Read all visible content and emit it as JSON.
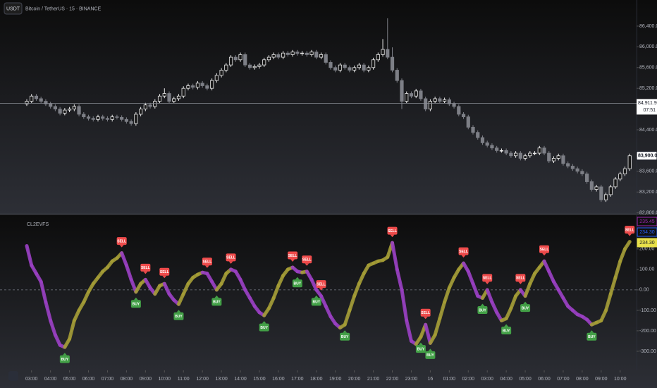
{
  "chart_data": [
    {
      "type": "candlestick",
      "title": "Bitcoin / TetherUS · 15 · BINANCE",
      "currency": "USDT",
      "up_color": "#e8e8e8",
      "down_color": "#7d7f86",
      "ylim": [
        82795,
        86903
      ],
      "yticks": [
        {
          "value": 86400,
          "label": "86,400.00"
        },
        {
          "value": 86000,
          "label": "86,000.00"
        },
        {
          "value": 85600,
          "label": "85,600.00"
        },
        {
          "value": 85200,
          "label": "85,200.00"
        },
        {
          "value": 84400,
          "label": "84,400.00"
        },
        {
          "value": 83600,
          "label": "83,600.00"
        },
        {
          "value": 83200,
          "label": "83,200.00"
        },
        {
          "value": 82800,
          "label": "82,800.00"
        }
      ],
      "price_lines": [
        {
          "value": 84911.9,
          "label": "84,911.90",
          "countdown": "07:51"
        },
        {
          "value": 83900,
          "label": "83,900.00"
        }
      ],
      "ohlc": [
        [
          84900,
          84990,
          84860,
          84950
        ],
        [
          84950,
          85090,
          84910,
          85050
        ],
        [
          85050,
          85090,
          84960,
          85000
        ],
        [
          85000,
          85040,
          84910,
          84950
        ],
        [
          84950,
          84990,
          84860,
          84900
        ],
        [
          84900,
          84940,
          84810,
          84850
        ],
        [
          84850,
          84890,
          84760,
          84800
        ],
        [
          84800,
          84840,
          84680,
          84720
        ],
        [
          84720,
          84820,
          84680,
          84780
        ],
        [
          84780,
          84840,
          84740,
          84800
        ],
        [
          84800,
          84890,
          84760,
          84850
        ],
        [
          84850,
          84890,
          84660,
          84700
        ],
        [
          84700,
          84740,
          84610,
          84650
        ],
        [
          84650,
          84690,
          84580,
          84620
        ],
        [
          84620,
          84660,
          84560,
          84600
        ],
        [
          84600,
          84690,
          84560,
          84650
        ],
        [
          84650,
          84690,
          84580,
          84620
        ],
        [
          84620,
          84660,
          84560,
          84600
        ],
        [
          84600,
          84690,
          84560,
          84650
        ],
        [
          84650,
          84690,
          84600,
          84640
        ],
        [
          84640,
          84680,
          84560,
          84600
        ],
        [
          84600,
          84640,
          84520,
          84560
        ],
        [
          84560,
          84600,
          84480,
          84520
        ],
        [
          84520,
          84740,
          84480,
          84700
        ],
        [
          84700,
          84840,
          84660,
          84800
        ],
        [
          84800,
          84920,
          84760,
          84880
        ],
        [
          84880,
          84920,
          84810,
          84850
        ],
        [
          84850,
          84990,
          84810,
          84950
        ],
        [
          84950,
          85090,
          84910,
          85050
        ],
        [
          85050,
          85200,
          85010,
          85100
        ],
        [
          85100,
          85140,
          84910,
          84950
        ],
        [
          84950,
          85040,
          84910,
          85000
        ],
        [
          85000,
          85090,
          84960,
          85050
        ],
        [
          85050,
          85240,
          85010,
          85200
        ],
        [
          85200,
          85290,
          85160,
          85250
        ],
        [
          85250,
          85290,
          85180,
          85220
        ],
        [
          85220,
          85340,
          85180,
          85300
        ],
        [
          85300,
          85340,
          85210,
          85250
        ],
        [
          85250,
          85290,
          85160,
          85200
        ],
        [
          85200,
          85390,
          85160,
          85350
        ],
        [
          85350,
          85490,
          85310,
          85450
        ],
        [
          85450,
          85590,
          85410,
          85550
        ],
        [
          85550,
          85690,
          85510,
          85650
        ],
        [
          85650,
          85840,
          85610,
          85800
        ],
        [
          85800,
          85840,
          85710,
          85750
        ],
        [
          85750,
          85890,
          85710,
          85850
        ],
        [
          85850,
          85890,
          85610,
          85650
        ],
        [
          85650,
          85690,
          85560,
          85600
        ],
        [
          85600,
          85660,
          85560,
          85620
        ],
        [
          85620,
          85690,
          85580,
          85650
        ],
        [
          85650,
          85790,
          85610,
          85750
        ],
        [
          85750,
          85840,
          85710,
          85800
        ],
        [
          85800,
          85890,
          85760,
          85850
        ],
        [
          85850,
          85890,
          85760,
          85800
        ],
        [
          85800,
          85920,
          85760,
          85880
        ],
        [
          85880,
          85920,
          85810,
          85850
        ],
        [
          85850,
          85940,
          85810,
          85900
        ],
        [
          85900,
          85940,
          85830,
          85870
        ],
        [
          85870,
          85920,
          85830,
          85880
        ],
        [
          85880,
          85920,
          85810,
          85850
        ],
        [
          85850,
          85940,
          85810,
          85900
        ],
        [
          85900,
          85940,
          85760,
          85800
        ],
        [
          85800,
          85890,
          85760,
          85850
        ],
        [
          85850,
          85890,
          85660,
          85700
        ],
        [
          85700,
          85740,
          85560,
          85600
        ],
        [
          85600,
          85640,
          85510,
          85550
        ],
        [
          85550,
          85690,
          85510,
          85650
        ],
        [
          85650,
          85690,
          85560,
          85600
        ],
        [
          85600,
          85640,
          85510,
          85550
        ],
        [
          85550,
          85640,
          85510,
          85600
        ],
        [
          85600,
          85690,
          85560,
          85650
        ],
        [
          85650,
          85690,
          85510,
          85550
        ],
        [
          85550,
          85640,
          85510,
          85600
        ],
        [
          85600,
          85790,
          85560,
          85750
        ],
        [
          85750,
          85890,
          85710,
          85850
        ],
        [
          85850,
          86150,
          85810,
          85950
        ],
        [
          85950,
          86550,
          85760,
          85800
        ],
        [
          85800,
          85990,
          85510,
          85550
        ],
        [
          85550,
          85590,
          85310,
          85350
        ],
        [
          85350,
          85390,
          84800,
          84950
        ],
        [
          84950,
          85140,
          84910,
          85100
        ],
        [
          85100,
          85140,
          85010,
          85050
        ],
        [
          85050,
          85190,
          85010,
          85150
        ],
        [
          85150,
          85190,
          84960,
          85000
        ],
        [
          85000,
          85040,
          84760,
          84800
        ],
        [
          84800,
          84990,
          84760,
          84950
        ],
        [
          84950,
          85040,
          84910,
          85000
        ],
        [
          85000,
          85040,
          84910,
          84950
        ],
        [
          84950,
          85020,
          84910,
          84980
        ],
        [
          84980,
          85020,
          84860,
          84900
        ],
        [
          84900,
          84940,
          84810,
          84850
        ],
        [
          84850,
          84890,
          84660,
          84700
        ],
        [
          84700,
          84740,
          84610,
          84650
        ],
        [
          84650,
          84690,
          84410,
          84450
        ],
        [
          84450,
          84490,
          84310,
          84350
        ],
        [
          84350,
          84390,
          84210,
          84250
        ],
        [
          84250,
          84290,
          84110,
          84150
        ],
        [
          84150,
          84190,
          84060,
          84100
        ],
        [
          84100,
          84140,
          84010,
          84050
        ],
        [
          84050,
          84090,
          83960,
          84000
        ],
        [
          84000,
          84040,
          83960,
          84000
        ],
        [
          84000,
          84040,
          83910,
          83950
        ],
        [
          83950,
          83990,
          83860,
          83900
        ],
        [
          83900,
          83990,
          83860,
          83950
        ],
        [
          83950,
          83990,
          83810,
          83850
        ],
        [
          83850,
          83940,
          83810,
          83900
        ],
        [
          83900,
          83990,
          83860,
          83950
        ],
        [
          83950,
          83990,
          83910,
          83950
        ],
        [
          83950,
          84090,
          83910,
          84050
        ],
        [
          84050,
          84090,
          83910,
          83950
        ],
        [
          83950,
          83990,
          83760,
          83800
        ],
        [
          83800,
          83890,
          83760,
          83850
        ],
        [
          83850,
          83940,
          83810,
          83900
        ],
        [
          83900,
          83940,
          83710,
          83750
        ],
        [
          83750,
          83790,
          83660,
          83700
        ],
        [
          83700,
          83740,
          83610,
          83650
        ],
        [
          83650,
          83690,
          83560,
          83600
        ],
        [
          83600,
          83640,
          83510,
          83550
        ],
        [
          83550,
          83590,
          83360,
          83400
        ],
        [
          83400,
          83440,
          83210,
          83250
        ],
        [
          83250,
          83340,
          83210,
          83300
        ],
        [
          83300,
          83340,
          83010,
          83050
        ],
        [
          83050,
          83190,
          83010,
          83150
        ],
        [
          83150,
          83340,
          83110,
          83300
        ],
        [
          83300,
          83490,
          83260,
          83450
        ],
        [
          83450,
          83590,
          83410,
          83550
        ],
        [
          83550,
          83690,
          83510,
          83650
        ],
        [
          83650,
          83940,
          83610,
          83900
        ]
      ]
    },
    {
      "type": "line",
      "title": "CL2EVFS",
      "up_color": "#a59d35",
      "down_color": "#9a3fc2",
      "zero_line": true,
      "xlim": [
        -5.64,
        128.45
      ],
      "xticks": [
        {
          "value": 1,
          "label": "03:00"
        },
        {
          "value": 5,
          "label": "04:00"
        },
        {
          "value": 9,
          "label": "05:00"
        },
        {
          "value": 13,
          "label": "06:00"
        },
        {
          "value": 17,
          "label": "07:00"
        },
        {
          "value": 21,
          "label": "08:00"
        },
        {
          "value": 25,
          "label": "09:00"
        },
        {
          "value": 29,
          "label": "10:00"
        },
        {
          "value": 33,
          "label": "11:00"
        },
        {
          "value": 37,
          "label": "12:00"
        },
        {
          "value": 41,
          "label": "13:00"
        },
        {
          "value": 45,
          "label": "14:00"
        },
        {
          "value": 49,
          "label": "15:00"
        },
        {
          "value": 53,
          "label": "16:00"
        },
        {
          "value": 57,
          "label": "17:00"
        },
        {
          "value": 61,
          "label": "18:00"
        },
        {
          "value": 65,
          "label": "19:00"
        },
        {
          "value": 69,
          "label": "20:00"
        },
        {
          "value": 73,
          "label": "21:00"
        },
        {
          "value": 77,
          "label": "22:00"
        },
        {
          "value": 81,
          "label": "23:00"
        },
        {
          "value": 85,
          "label": "16"
        },
        {
          "value": 89,
          "label": "01:00"
        },
        {
          "value": 93,
          "label": "02:00"
        },
        {
          "value": 97,
          "label": "03:00"
        },
        {
          "value": 101,
          "label": "04:00"
        },
        {
          "value": 105,
          "label": "05:00"
        },
        {
          "value": 109,
          "label": "06:00"
        },
        {
          "value": 113,
          "label": "07:00"
        },
        {
          "value": 117,
          "label": "08:00"
        },
        {
          "value": 121,
          "label": "09:00"
        },
        {
          "value": 125,
          "label": "10:00"
        }
      ],
      "ylim": [
        -376,
        365
      ],
      "yticks": [
        {
          "value": 200,
          "label": "200.00"
        },
        {
          "value": 100,
          "label": "100.00"
        },
        {
          "value": 0,
          "label": "0.00"
        },
        {
          "value": -100,
          "label": "-100.00"
        },
        {
          "value": -200,
          "label": "-200.00"
        },
        {
          "value": -300,
          "label": "-300.00"
        }
      ],
      "values": [
        215,
        120,
        80,
        40,
        -60,
        -150,
        -220,
        -270,
        -280,
        -240,
        -150,
        -100,
        -60,
        -10,
        30,
        60,
        90,
        110,
        140,
        155,
        180,
        120,
        50,
        -10,
        30,
        50,
        10,
        -20,
        20,
        30,
        -20,
        -50,
        -70,
        -20,
        30,
        60,
        75,
        85,
        80,
        40,
        0,
        30,
        80,
        100,
        90,
        50,
        0,
        -40,
        -80,
        -110,
        -125,
        -90,
        -40,
        20,
        70,
        100,
        110,
        90,
        85,
        90,
        50,
        0,
        -30,
        -80,
        -130,
        -165,
        -185,
        -170,
        -100,
        -30,
        30,
        80,
        120,
        130,
        140,
        145,
        160,
        230,
        100,
        0,
        -150,
        -250,
        -265,
        -230,
        -170,
        -260,
        -220,
        -140,
        -60,
        10,
        60,
        100,
        130,
        90,
        30,
        -30,
        -40,
        0,
        -60,
        -110,
        -150,
        -140,
        -90,
        -30,
        0,
        -30,
        30,
        80,
        110,
        140,
        90,
        40,
        0,
        -40,
        -80,
        -100,
        -120,
        -130,
        -145,
        -170,
        -160,
        -150,
        -100,
        -20,
        60,
        140,
        200,
        235.45
      ],
      "buy_label": "BUY",
      "sell_label": "SELL",
      "buy_color": "#43a047",
      "sell_color": "#ef4b4b",
      "buy": [
        8,
        23,
        32,
        40,
        50,
        57,
        61,
        67,
        83,
        85,
        96,
        101,
        105,
        119
      ],
      "sell": [
        20,
        25,
        29,
        38,
        43,
        56,
        59,
        62,
        77,
        84,
        92,
        97,
        104,
        109,
        127
      ],
      "last_values": [
        {
          "value": 235.45,
          "label": "235.45",
          "color": "#9c27b0"
        },
        {
          "value": 234.3,
          "label": "234.30",
          "color": "#2962ff"
        },
        {
          "value": 234.3,
          "label": "234.30",
          "color": "#e8e04a"
        }
      ]
    }
  ]
}
